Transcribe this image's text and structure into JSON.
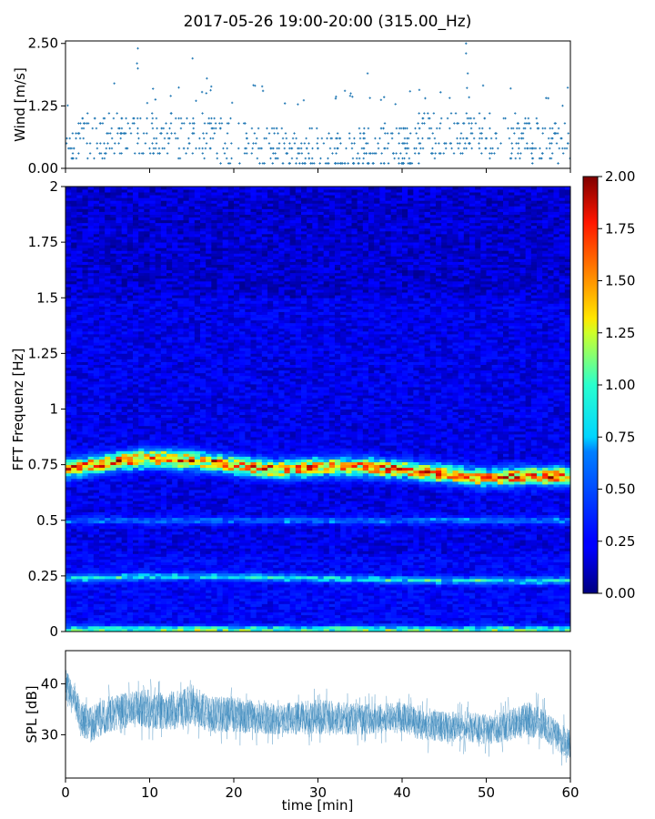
{
  "title": "2017-05-26 19:00-20:00 (315.00_Hz)",
  "chart_data": [
    {
      "type": "scatter",
      "panel": "wind",
      "ylabel": "Wind [m/s]",
      "xlim": [
        0,
        60
      ],
      "ylim": [
        0,
        2.55
      ],
      "yticks": [
        0.0,
        1.25,
        2.5
      ],
      "ytick_labels": [
        "0.00",
        "1.25",
        "2.50"
      ],
      "color": "#1f77b4",
      "marker": "small plus",
      "levels_mps": [
        0.1,
        0.2,
        0.3,
        0.4,
        0.5,
        0.6,
        0.7,
        0.8,
        0.9,
        1.0,
        1.1,
        1.2
      ],
      "outliers": [
        {
          "x": 8.6,
          "y": 2.4
        },
        {
          "x": 8.5,
          "y": 2.1
        },
        {
          "x": 8.6,
          "y": 2.0
        },
        {
          "x": 15.1,
          "y": 2.2
        },
        {
          "x": 35.9,
          "y": 1.9
        },
        {
          "x": 47.6,
          "y": 2.5
        },
        {
          "x": 47.6,
          "y": 2.3
        },
        {
          "x": 47.8,
          "y": 1.9
        },
        {
          "x": 16.8,
          "y": 1.8
        },
        {
          "x": 5.8,
          "y": 1.7
        },
        {
          "x": 33.9,
          "y": 1.5
        },
        {
          "x": 52.9,
          "y": 1.6
        }
      ]
    },
    {
      "type": "heatmap",
      "panel": "spectrogram",
      "ylabel": "FFT Frequenz [Hz]",
      "xlim": [
        0,
        60
      ],
      "ylim": [
        0,
        2
      ],
      "yticks": [
        0,
        0.25,
        0.5,
        0.75,
        1,
        1.25,
        1.5,
        1.75,
        2
      ],
      "ytick_labels": [
        "0",
        "0.25",
        "0.5",
        "0.75",
        "1",
        "1.25",
        "1.5",
        "1.75",
        "2"
      ],
      "colormap": "jet",
      "colorbar": {
        "range": [
          0.0,
          2.0
        ],
        "ticks": [
          "0.00",
          "0.25",
          "0.50",
          "0.75",
          "1.00",
          "1.25",
          "1.50",
          "1.75",
          "2.00"
        ],
        "tick_values": [
          0,
          0.25,
          0.5,
          0.75,
          1.0,
          1.25,
          1.5,
          1.75,
          2.0
        ]
      },
      "background_level": 0.2,
      "bands": [
        {
          "name_hint": "dominant",
          "freq_track": [
            [
              0,
              0.73
            ],
            [
              5,
              0.76
            ],
            [
              10,
              0.78
            ],
            [
              15,
              0.77
            ],
            [
              20,
              0.75
            ],
            [
              25,
              0.73
            ],
            [
              30,
              0.74
            ],
            [
              35,
              0.74
            ],
            [
              40,
              0.73
            ],
            [
              45,
              0.71
            ],
            [
              50,
              0.69
            ],
            [
              55,
              0.7
            ],
            [
              60,
              0.7
            ]
          ],
          "level": 1.5
        },
        {
          "name_hint": "lower",
          "freq_track": [
            [
              0,
              0.24
            ],
            [
              15,
              0.25
            ],
            [
              30,
              0.24
            ],
            [
              45,
              0.23
            ],
            [
              60,
              0.23
            ]
          ],
          "level": 0.7
        },
        {
          "name_hint": "half",
          "freq_track": [
            [
              0,
              0.5
            ],
            [
              60,
              0.5
            ]
          ],
          "level": 0.45
        },
        {
          "name_hint": "near-zero",
          "freq_track": [
            [
              0,
              0.01
            ],
            [
              60,
              0.01
            ]
          ],
          "level": 0.9
        }
      ]
    },
    {
      "type": "line",
      "panel": "spl",
      "ylabel": "SPL [dB]",
      "xlabel": "time [min]",
      "xlim": [
        0,
        60
      ],
      "ylim": [
        21.5,
        46.5
      ],
      "xticks": [
        0,
        10,
        20,
        30,
        40,
        50,
        60
      ],
      "xtick_labels": [
        "0",
        "10",
        "20",
        "30",
        "40",
        "50",
        "60"
      ],
      "yticks": [
        30,
        40
      ],
      "ytick_labels": [
        "30",
        "40"
      ],
      "color": "#1f77b4",
      "envelope": {
        "x": [
          0,
          1,
          2,
          3,
          5,
          8,
          10,
          12,
          14,
          15,
          17,
          20,
          25,
          30,
          35,
          40,
          42,
          45,
          48,
          50,
          52,
          55,
          57,
          59,
          60
        ],
        "mean": [
          40,
          37,
          33,
          32,
          34,
          35,
          35,
          34.5,
          35,
          36,
          34,
          34,
          33,
          33.5,
          33,
          33.5,
          32,
          31.5,
          31.5,
          31,
          31.5,
          33,
          32,
          29,
          28
        ],
        "spread": [
          3,
          3,
          3.5,
          3.5,
          3.5,
          3.5,
          4,
          3.5,
          4,
          4,
          3.5,
          3.5,
          3,
          3.5,
          3,
          3,
          3,
          3,
          3,
          3,
          3,
          3.5,
          3,
          3,
          3
        ]
      }
    }
  ]
}
